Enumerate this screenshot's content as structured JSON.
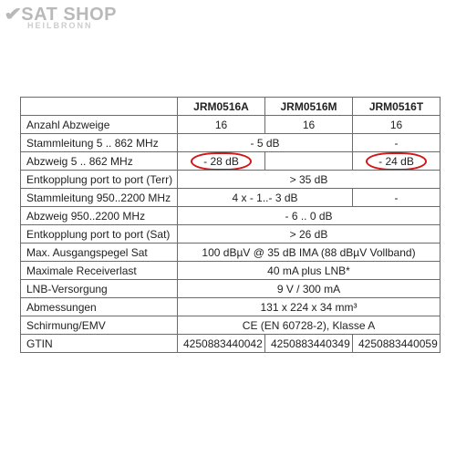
{
  "logo": {
    "brand": "SAT SHOP",
    "sub": "HEILBRONN"
  },
  "table": {
    "col_widths": [
      "172px",
      "96px",
      "96px",
      "96px"
    ],
    "header": [
      "",
      "JRM0516A",
      "JRM0516M",
      "JRM0516T"
    ],
    "rows": [
      {
        "label": "Anzahl Abzweige",
        "cells": [
          "16",
          "16",
          "16"
        ]
      },
      {
        "label": "Stammleitung 5 .. 862 MHz",
        "cells": [
          {
            "text": "- 5 dB",
            "span": 2
          },
          "-"
        ]
      },
      {
        "label": "Abzweig 5 .. 862 MHz",
        "cells": [
          {
            "text": "- 28 dB",
            "circled": true
          },
          "",
          {
            "text": "- 24 dB",
            "circled": true
          }
        ]
      },
      {
        "label": "Entkopplung port to port (Terr)",
        "cells": [
          {
            "text": "> 35 dB",
            "span": 3
          }
        ]
      },
      {
        "label": "Stammleitung 950..2200 MHz",
        "cells": [
          {
            "text": "4 x - 1..- 3 dB",
            "span": 2
          },
          "-"
        ]
      },
      {
        "label": "Abzweig 950..2200 MHz",
        "cells": [
          {
            "text": "- 6 .. 0 dB",
            "span": 3
          }
        ]
      },
      {
        "label": "Entkopplung port to port (Sat)",
        "cells": [
          {
            "text": "> 26 dB",
            "span": 3
          }
        ]
      },
      {
        "label": "Max. Ausgangspegel Sat",
        "cells": [
          {
            "text": "100 dBµV @ 35 dB IMA (88 dBµV Vollband)",
            "span": 3
          }
        ]
      },
      {
        "label": "Maximale Receiverlast",
        "cells": [
          {
            "text": "40 mA plus LNB*",
            "span": 3
          }
        ]
      },
      {
        "label": "LNB-Versorgung",
        "cells": [
          {
            "text": "9 V / 300 mA",
            "span": 3
          }
        ]
      },
      {
        "label": "Abmessungen",
        "cells": [
          {
            "text": "131 x 224 x 34 mm³",
            "span": 3
          }
        ]
      },
      {
        "label": "Schirmung/EMV",
        "cells": [
          {
            "text": "CE (EN 60728-2), Klasse A",
            "span": 3
          }
        ]
      },
      {
        "label": "GTIN",
        "cells": [
          "4250883440042",
          "4250883440349",
          "4250883440059"
        ]
      }
    ],
    "circle_color": "#d11717"
  }
}
